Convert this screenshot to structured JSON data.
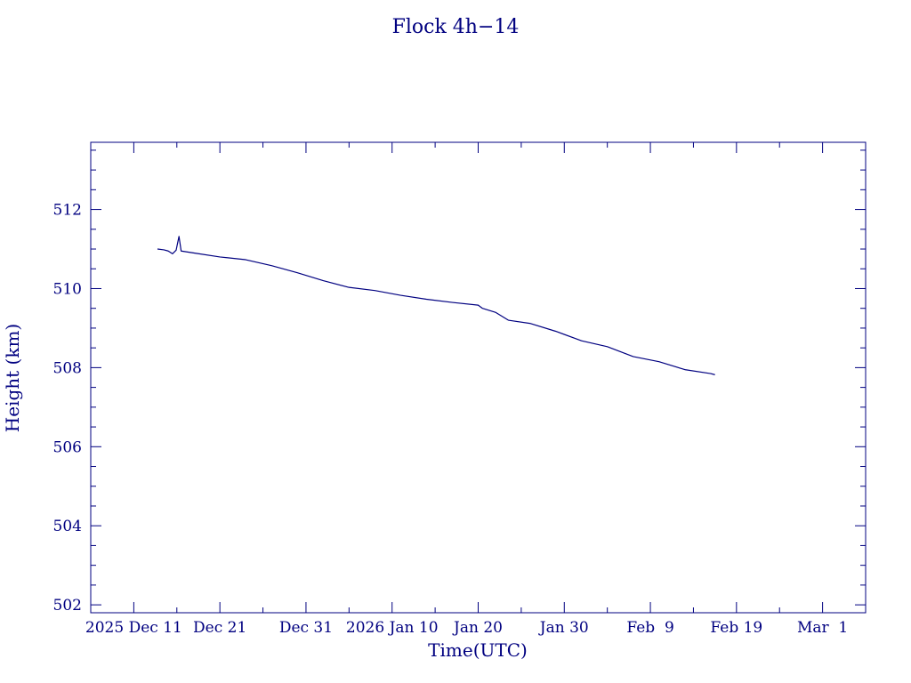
{
  "chart_data": {
    "type": "line",
    "title": "Flock 4h−14",
    "xlabel": "Time(UTC)",
    "ylabel": "Height (km)",
    "x_range": [
      "2025-12-06",
      "2026-03-06"
    ],
    "ylim": [
      501.8,
      513.7
    ],
    "grid": false,
    "y_ticks": [
      {
        "value": 502,
        "label": "502"
      },
      {
        "value": 504,
        "label": "504"
      },
      {
        "value": 506,
        "label": "506"
      },
      {
        "value": 508,
        "label": "508"
      },
      {
        "value": 510,
        "label": "510"
      },
      {
        "value": 512,
        "label": "512"
      }
    ],
    "x_ticks": [
      {
        "date": "2025-12-11",
        "label": "2025 Dec 11"
      },
      {
        "date": "2025-12-21",
        "label": "Dec 21"
      },
      {
        "date": "2025-12-31",
        "label": "Dec 31"
      },
      {
        "date": "2026-01-10",
        "label": "2026 Jan 10"
      },
      {
        "date": "2026-01-20",
        "label": "Jan 20"
      },
      {
        "date": "2026-01-30",
        "label": "Jan 30"
      },
      {
        "date": "2026-02-09",
        "label": "Feb  9"
      },
      {
        "date": "2026-02-19",
        "label": "Feb 19"
      },
      {
        "date": "2026-03-01",
        "label": "Mar  1"
      }
    ],
    "series": [
      {
        "color": "#000080",
        "points": [
          [
            "2025-12-13T18:00",
            511.0
          ],
          [
            "2025-12-14T12:00",
            510.98
          ],
          [
            "2025-12-15T00:00",
            510.95
          ],
          [
            "2025-12-15T12:00",
            510.88
          ],
          [
            "2025-12-15T22:00",
            510.97
          ],
          [
            "2025-12-16T06:00",
            511.32
          ],
          [
            "2025-12-16T12:00",
            510.95
          ],
          [
            "2025-12-18T00:00",
            510.9
          ],
          [
            "2025-12-21T00:00",
            510.8
          ],
          [
            "2025-12-24T00:00",
            510.73
          ],
          [
            "2025-12-27T00:00",
            510.58
          ],
          [
            "2025-12-30T00:00",
            510.4
          ],
          [
            "2026-01-02T00:00",
            510.2
          ],
          [
            "2026-01-05T00:00",
            510.03
          ],
          [
            "2026-01-08T00:00",
            509.95
          ],
          [
            "2026-01-11T00:00",
            509.83
          ],
          [
            "2026-01-14T00:00",
            509.73
          ],
          [
            "2026-01-17T00:00",
            509.65
          ],
          [
            "2026-01-20T00:00",
            509.58
          ],
          [
            "2026-01-20T12:00",
            509.5
          ],
          [
            "2026-01-22T00:00",
            509.4
          ],
          [
            "2026-01-23T12:00",
            509.2
          ],
          [
            "2026-01-26T00:00",
            509.12
          ],
          [
            "2026-01-29T00:00",
            508.92
          ],
          [
            "2026-02-01T00:00",
            508.68
          ],
          [
            "2026-02-04T00:00",
            508.53
          ],
          [
            "2026-02-07T00:00",
            508.28
          ],
          [
            "2026-02-10T00:00",
            508.15
          ],
          [
            "2026-02-13T00:00",
            507.95
          ],
          [
            "2026-02-16T00:00",
            507.85
          ],
          [
            "2026-02-16T12:00",
            507.82
          ]
        ]
      }
    ]
  }
}
